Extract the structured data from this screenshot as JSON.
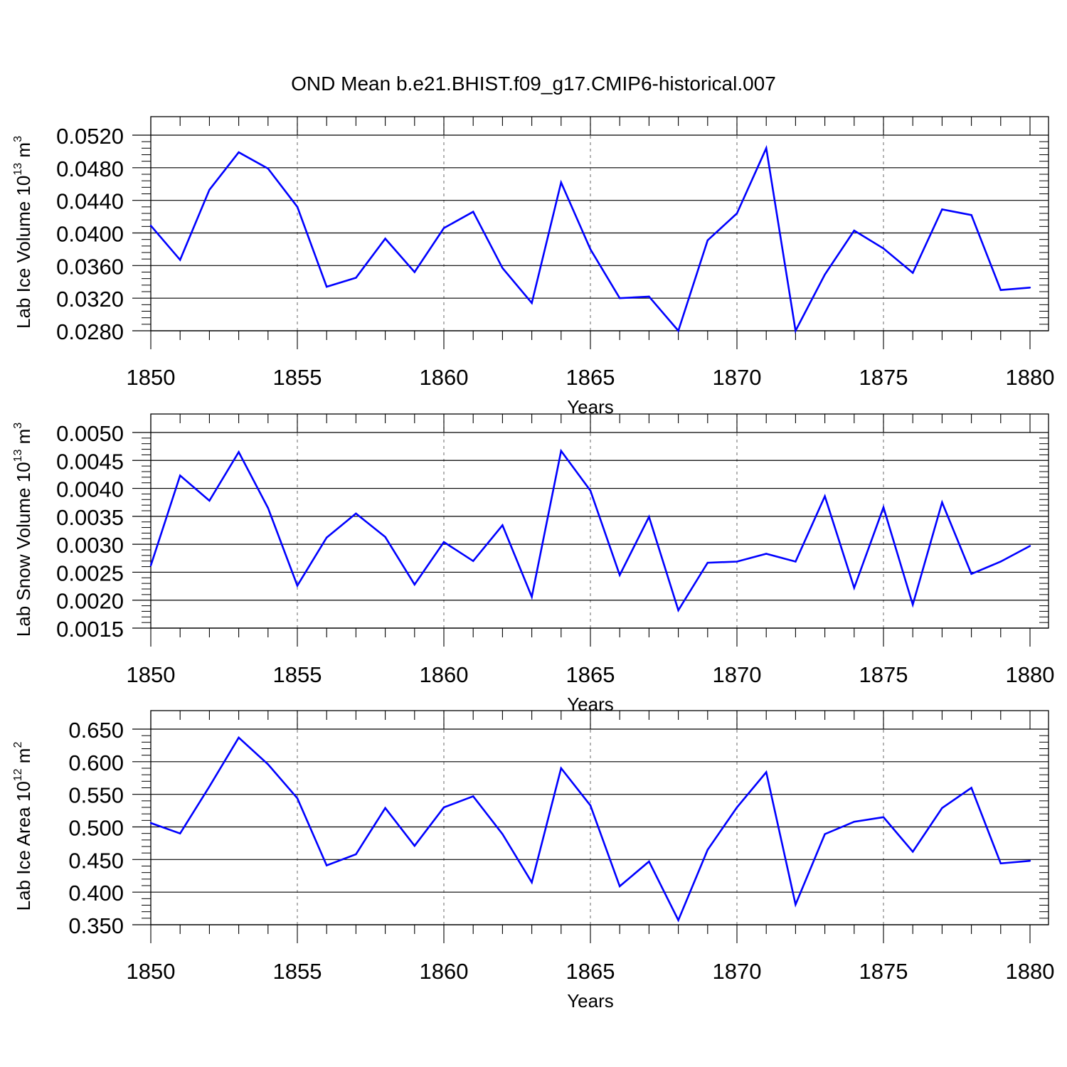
{
  "title": "OND Mean b.e21.BHIST.f09_g17.CMIP6-historical.007",
  "colors": {
    "series": "#0000ff",
    "axis": "#000000",
    "grid": "#808080",
    "background": "#ffffff"
  },
  "chart_data": [
    {
      "type": "line",
      "xlabel": "Years",
      "ylabel": {
        "text": "Lab Ice Volume 10",
        "exp": "13",
        "unit": " m",
        "unit_exp": "3"
      },
      "xlim": [
        1850,
        1880
      ],
      "ylim": [
        0.028,
        0.052
      ],
      "yticks": [
        "0.0280",
        "0.0320",
        "0.0360",
        "0.0400",
        "0.0440",
        "0.0480",
        "0.0520"
      ],
      "xticks": [
        "1850",
        "1855",
        "1860",
        "1865",
        "1870",
        "1875",
        "1880"
      ],
      "grid": "vertical-dashed",
      "series": [
        {
          "name": "Lab Ice Volume",
          "x": [
            1850,
            1851,
            1852,
            1853,
            1854,
            1855,
            1856,
            1857,
            1858,
            1859,
            1860,
            1861,
            1862,
            1863,
            1864,
            1865,
            1866,
            1867,
            1868,
            1869,
            1870,
            1871,
            1872,
            1873,
            1874,
            1875,
            1876,
            1877,
            1878,
            1879,
            1880
          ],
          "values": [
            0.0409,
            0.0367,
            0.0453,
            0.0499,
            0.0479,
            0.0432,
            0.0334,
            0.0345,
            0.0393,
            0.0352,
            0.0406,
            0.0426,
            0.0357,
            0.0314,
            0.0462,
            0.038,
            0.032,
            0.0322,
            0.028,
            0.0391,
            0.0424,
            0.0504,
            0.028,
            0.0349,
            0.0403,
            0.0381,
            0.0351,
            0.0429,
            0.0422,
            0.033,
            0.0333
          ]
        }
      ]
    },
    {
      "type": "line",
      "xlabel": "Years",
      "ylabel": {
        "text": "Lab Snow Volume 10",
        "exp": "13",
        "unit": " m",
        "unit_exp": "3"
      },
      "xlim": [
        1850,
        1880
      ],
      "ylim": [
        0.0015,
        0.005
      ],
      "yticks": [
        "0.0015",
        "0.0020",
        "0.0025",
        "0.0030",
        "0.0035",
        "0.0040",
        "0.0045",
        "0.0050"
      ],
      "xticks": [
        "1850",
        "1855",
        "1860",
        "1865",
        "1870",
        "1875",
        "1880"
      ],
      "grid": "vertical-dashed",
      "series": [
        {
          "name": "Lab Snow Volume",
          "x": [
            1850,
            1851,
            1852,
            1853,
            1854,
            1855,
            1856,
            1857,
            1858,
            1859,
            1860,
            1861,
            1862,
            1863,
            1864,
            1865,
            1866,
            1867,
            1868,
            1869,
            1870,
            1871,
            1872,
            1873,
            1874,
            1875,
            1876,
            1877,
            1878,
            1879,
            1880
          ],
          "values": [
            0.00262,
            0.00423,
            0.00378,
            0.00465,
            0.00365,
            0.00226,
            0.00312,
            0.00355,
            0.00313,
            0.00228,
            0.00304,
            0.0027,
            0.00334,
            0.00206,
            0.00467,
            0.00396,
            0.00245,
            0.00349,
            0.00182,
            0.00267,
            0.00269,
            0.00283,
            0.00269,
            0.00386,
            0.00222,
            0.00366,
            0.00192,
            0.00375,
            0.00247,
            0.00269,
            0.00297
          ]
        }
      ]
    },
    {
      "type": "line",
      "xlabel": "Years",
      "ylabel": {
        "text": "Lab Ice Area 10",
        "exp": "12",
        "unit": " m",
        "unit_exp": "2"
      },
      "xlim": [
        1850,
        1880
      ],
      "ylim": [
        0.35,
        0.65
      ],
      "yticks": [
        "0.350",
        "0.400",
        "0.450",
        "0.500",
        "0.550",
        "0.600",
        "0.650"
      ],
      "xticks": [
        "1850",
        "1855",
        "1860",
        "1865",
        "1870",
        "1875",
        "1880"
      ],
      "grid": "vertical-dashed",
      "series": [
        {
          "name": "Lab Ice Area",
          "x": [
            1850,
            1851,
            1852,
            1853,
            1854,
            1855,
            1856,
            1857,
            1858,
            1859,
            1860,
            1861,
            1862,
            1863,
            1864,
            1865,
            1866,
            1867,
            1868,
            1869,
            1870,
            1871,
            1872,
            1873,
            1874,
            1875,
            1876,
            1877,
            1878,
            1879,
            1880
          ],
          "values": [
            0.506,
            0.49,
            0.562,
            0.637,
            0.596,
            0.544,
            0.441,
            0.458,
            0.529,
            0.471,
            0.53,
            0.547,
            0.489,
            0.415,
            0.59,
            0.533,
            0.409,
            0.447,
            0.357,
            0.465,
            0.53,
            0.584,
            0.381,
            0.489,
            0.508,
            0.515,
            0.462,
            0.529,
            0.56,
            0.444,
            0.448
          ]
        }
      ]
    }
  ]
}
